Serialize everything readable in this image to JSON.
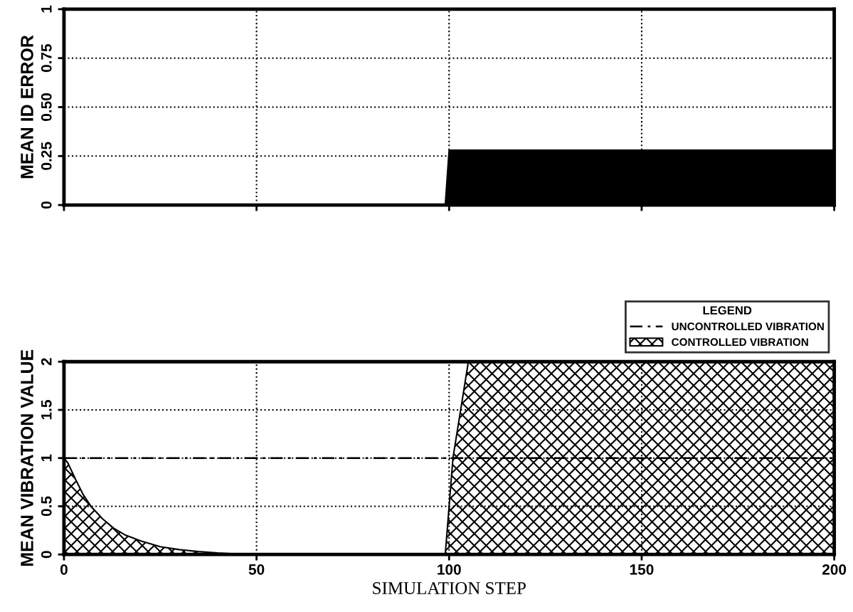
{
  "chart_data": [
    {
      "type": "area",
      "ylabel": "MEAN ID ERROR",
      "xlim": [
        0,
        200
      ],
      "ylim": [
        0,
        1
      ],
      "xticks": [
        {
          "value": 0,
          "label": null
        },
        {
          "value": 50,
          "label": null
        },
        {
          "value": 100,
          "label": null
        },
        {
          "value": 150,
          "label": null
        },
        {
          "value": 200,
          "label": null
        }
      ],
      "yticks": [
        0,
        0.25,
        {
          "value": 0.5,
          "label": "0.50"
        },
        0.75,
        1
      ],
      "tick_labels": "y",
      "grid": true,
      "legend": false,
      "series": [
        {
          "color": "#000000",
          "x": [
            0,
            99,
            100,
            200
          ],
          "values": [
            0,
            0,
            0.28,
            0.28
          ]
        }
      ]
    },
    {
      "type": "area",
      "xlabel": "SIMULATION STEP",
      "ylabel": "MEAN VIBRATION VALUE",
      "legend_title": "LEGEND",
      "xlim": [
        0,
        200
      ],
      "ylim": [
        0,
        2
      ],
      "xticks": [
        0,
        50,
        100,
        150,
        200
      ],
      "yticks": [
        0,
        0.5,
        1,
        1.5,
        2
      ],
      "grid": true,
      "legend": "top right",
      "series": [
        {
          "name": "UNCONTROLLED VIBRATION",
          "type": "line",
          "line_style": "dashed",
          "color": "#000000",
          "x": [
            0,
            200
          ],
          "values": [
            1,
            1
          ]
        },
        {
          "name": "CONTROLLED VIBRATION",
          "color": "#000000",
          "x": [
            0,
            1,
            3,
            5,
            7,
            10,
            13,
            16,
            20,
            25,
            30,
            35,
            40,
            45,
            50,
            99,
            101,
            105,
            200
          ],
          "values": [
            1,
            0.95,
            0.78,
            0.62,
            0.5,
            0.37,
            0.27,
            0.2,
            0.14,
            0.08,
            0.05,
            0.03,
            0.015,
            0.005,
            0,
            0,
            1,
            2,
            2
          ]
        }
      ]
    }
  ]
}
